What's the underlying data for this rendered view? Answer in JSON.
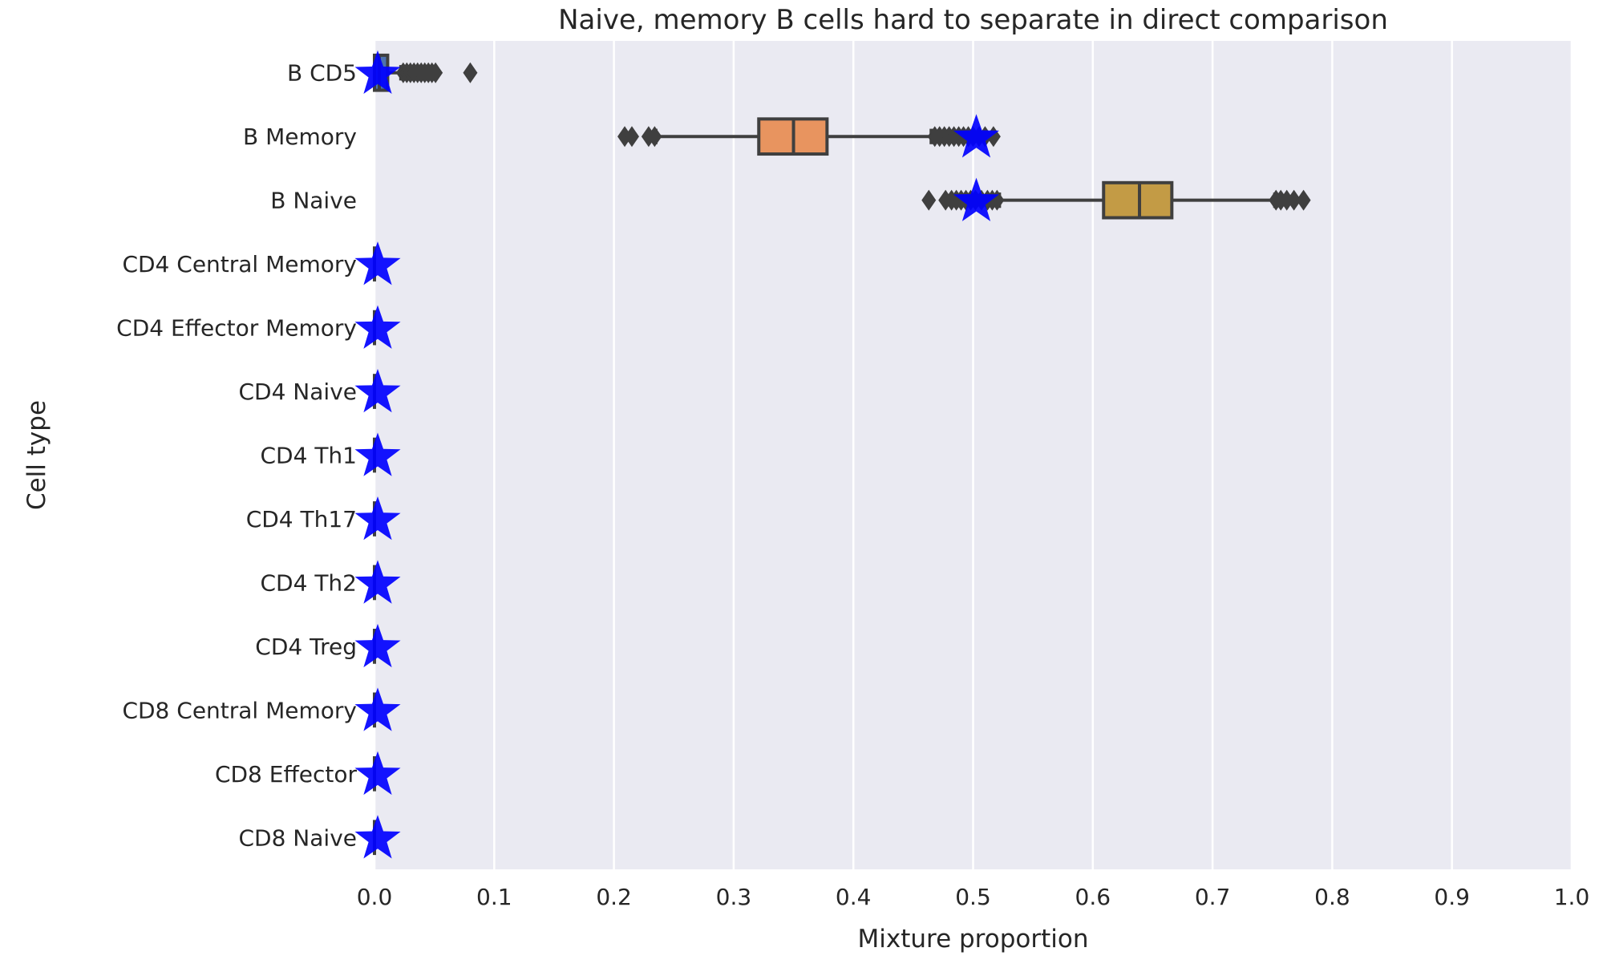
{
  "chart_data": {
    "type": "box",
    "orientation": "horizontal",
    "title": "Naive, memory B cells hard to separate in direct comparison",
    "xlabel": "Mixture proportion",
    "ylabel": "Cell type",
    "xlim": [
      0.0,
      1.0
    ],
    "xticks": [
      "0.0",
      "0.1",
      "0.2",
      "0.3",
      "0.4",
      "0.5",
      "0.6",
      "0.7",
      "0.8",
      "0.9",
      "1.0"
    ],
    "grid": true,
    "background_color": "#eaeaf2",
    "categories": [
      "B CD5",
      "B Memory",
      "B Naive",
      "CD4 Central Memory",
      "CD4 Effector Memory",
      "CD4 Naive",
      "CD4 Th1",
      "CD4 Th17",
      "CD4 Th2",
      "CD4 Treg",
      "CD8 Central Memory",
      "CD8 Effector",
      "CD8 Naive"
    ],
    "boxes": [
      {
        "category": "B CD5",
        "color": "#4c72b0",
        "whisker_low": 0.0,
        "q1": 0.0,
        "median": 0.004,
        "q3": 0.011,
        "whisker_high": 0.022,
        "outliers": [
          0.024,
          0.027,
          0.03,
          0.033,
          0.036,
          0.039,
          0.042,
          0.045,
          0.048,
          0.051,
          0.08
        ]
      },
      {
        "category": "B Memory",
        "color": "#e8945f",
        "whisker_low": 0.235,
        "q1": 0.321,
        "median": 0.35,
        "q3": 0.378,
        "whisker_high": 0.465,
        "outliers": [
          0.209,
          0.215,
          0.229,
          0.234,
          0.468,
          0.472,
          0.476,
          0.48,
          0.484,
          0.488,
          0.492,
          0.496,
          0.5,
          0.505,
          0.51,
          0.517
        ]
      },
      {
        "category": "B Naive",
        "color": "#c39b45",
        "whisker_low": 0.522,
        "q1": 0.609,
        "median": 0.639,
        "q3": 0.666,
        "whisker_high": 0.752,
        "outliers": [
          0.463,
          0.477,
          0.482,
          0.486,
          0.49,
          0.494,
          0.498,
          0.502,
          0.507,
          0.512,
          0.516,
          0.52,
          0.753,
          0.757,
          0.762,
          0.768,
          0.776
        ]
      },
      {
        "category": "CD4 Central Memory",
        "color": "#5f9e6e",
        "whisker_low": 0.0,
        "q1": 0.0,
        "median": 0.0,
        "q3": 0.0,
        "whisker_high": 0.0,
        "outliers": []
      },
      {
        "category": "CD4 Effector Memory",
        "color": "#6d5e9a",
        "whisker_low": 0.0,
        "q1": 0.0,
        "median": 0.0,
        "q3": 0.0,
        "whisker_high": 0.0,
        "outliers": []
      },
      {
        "category": "CD4 Naive",
        "color": "#8c6656",
        "whisker_low": 0.0,
        "q1": 0.0,
        "median": 0.0,
        "q3": 0.0,
        "whisker_high": 0.0,
        "outliers": []
      },
      {
        "category": "CD4 Th1",
        "color": "#d884be",
        "whisker_low": 0.0,
        "q1": 0.0,
        "median": 0.0,
        "q3": 0.0,
        "whisker_high": 0.0,
        "outliers": []
      },
      {
        "category": "CD4 Th17",
        "color": "#8c8c8c",
        "whisker_low": 0.0,
        "q1": 0.0,
        "median": 0.0,
        "q3": 0.0,
        "whisker_high": 0.0,
        "outliers": []
      },
      {
        "category": "CD4 Th2",
        "color": "#c4ad66",
        "whisker_low": 0.0,
        "q1": 0.0,
        "median": 0.0,
        "q3": 0.0,
        "whisker_high": 0.0,
        "outliers": []
      },
      {
        "category": "CD4 Treg",
        "color": "#64b5cd",
        "whisker_low": 0.0,
        "q1": 0.0,
        "median": 0.0,
        "q3": 0.0,
        "whisker_high": 0.0,
        "outliers": []
      },
      {
        "category": "CD8 Central Memory",
        "color": "#4c72b0",
        "whisker_low": 0.0,
        "q1": 0.0,
        "median": 0.0,
        "q3": 0.0,
        "whisker_high": 0.0,
        "outliers": []
      },
      {
        "category": "CD8 Effector",
        "color": "#dd8452",
        "whisker_low": 0.0,
        "q1": 0.0,
        "median": 0.0,
        "q3": 0.0,
        "whisker_high": 0.0,
        "outliers": []
      },
      {
        "category": "CD8 Naive",
        "color": "#55a868",
        "whisker_low": 0.0,
        "q1": 0.0,
        "median": 0.0,
        "q3": 0.0,
        "whisker_high": 0.0,
        "outliers": []
      }
    ],
    "true_proportions": {
      "marker": "star",
      "color": "#0000ff",
      "values": [
        0.0,
        0.5,
        0.5,
        0.0,
        0.0,
        0.0,
        0.0,
        0.0,
        0.0,
        0.0,
        0.0,
        0.0,
        0.0
      ]
    }
  }
}
